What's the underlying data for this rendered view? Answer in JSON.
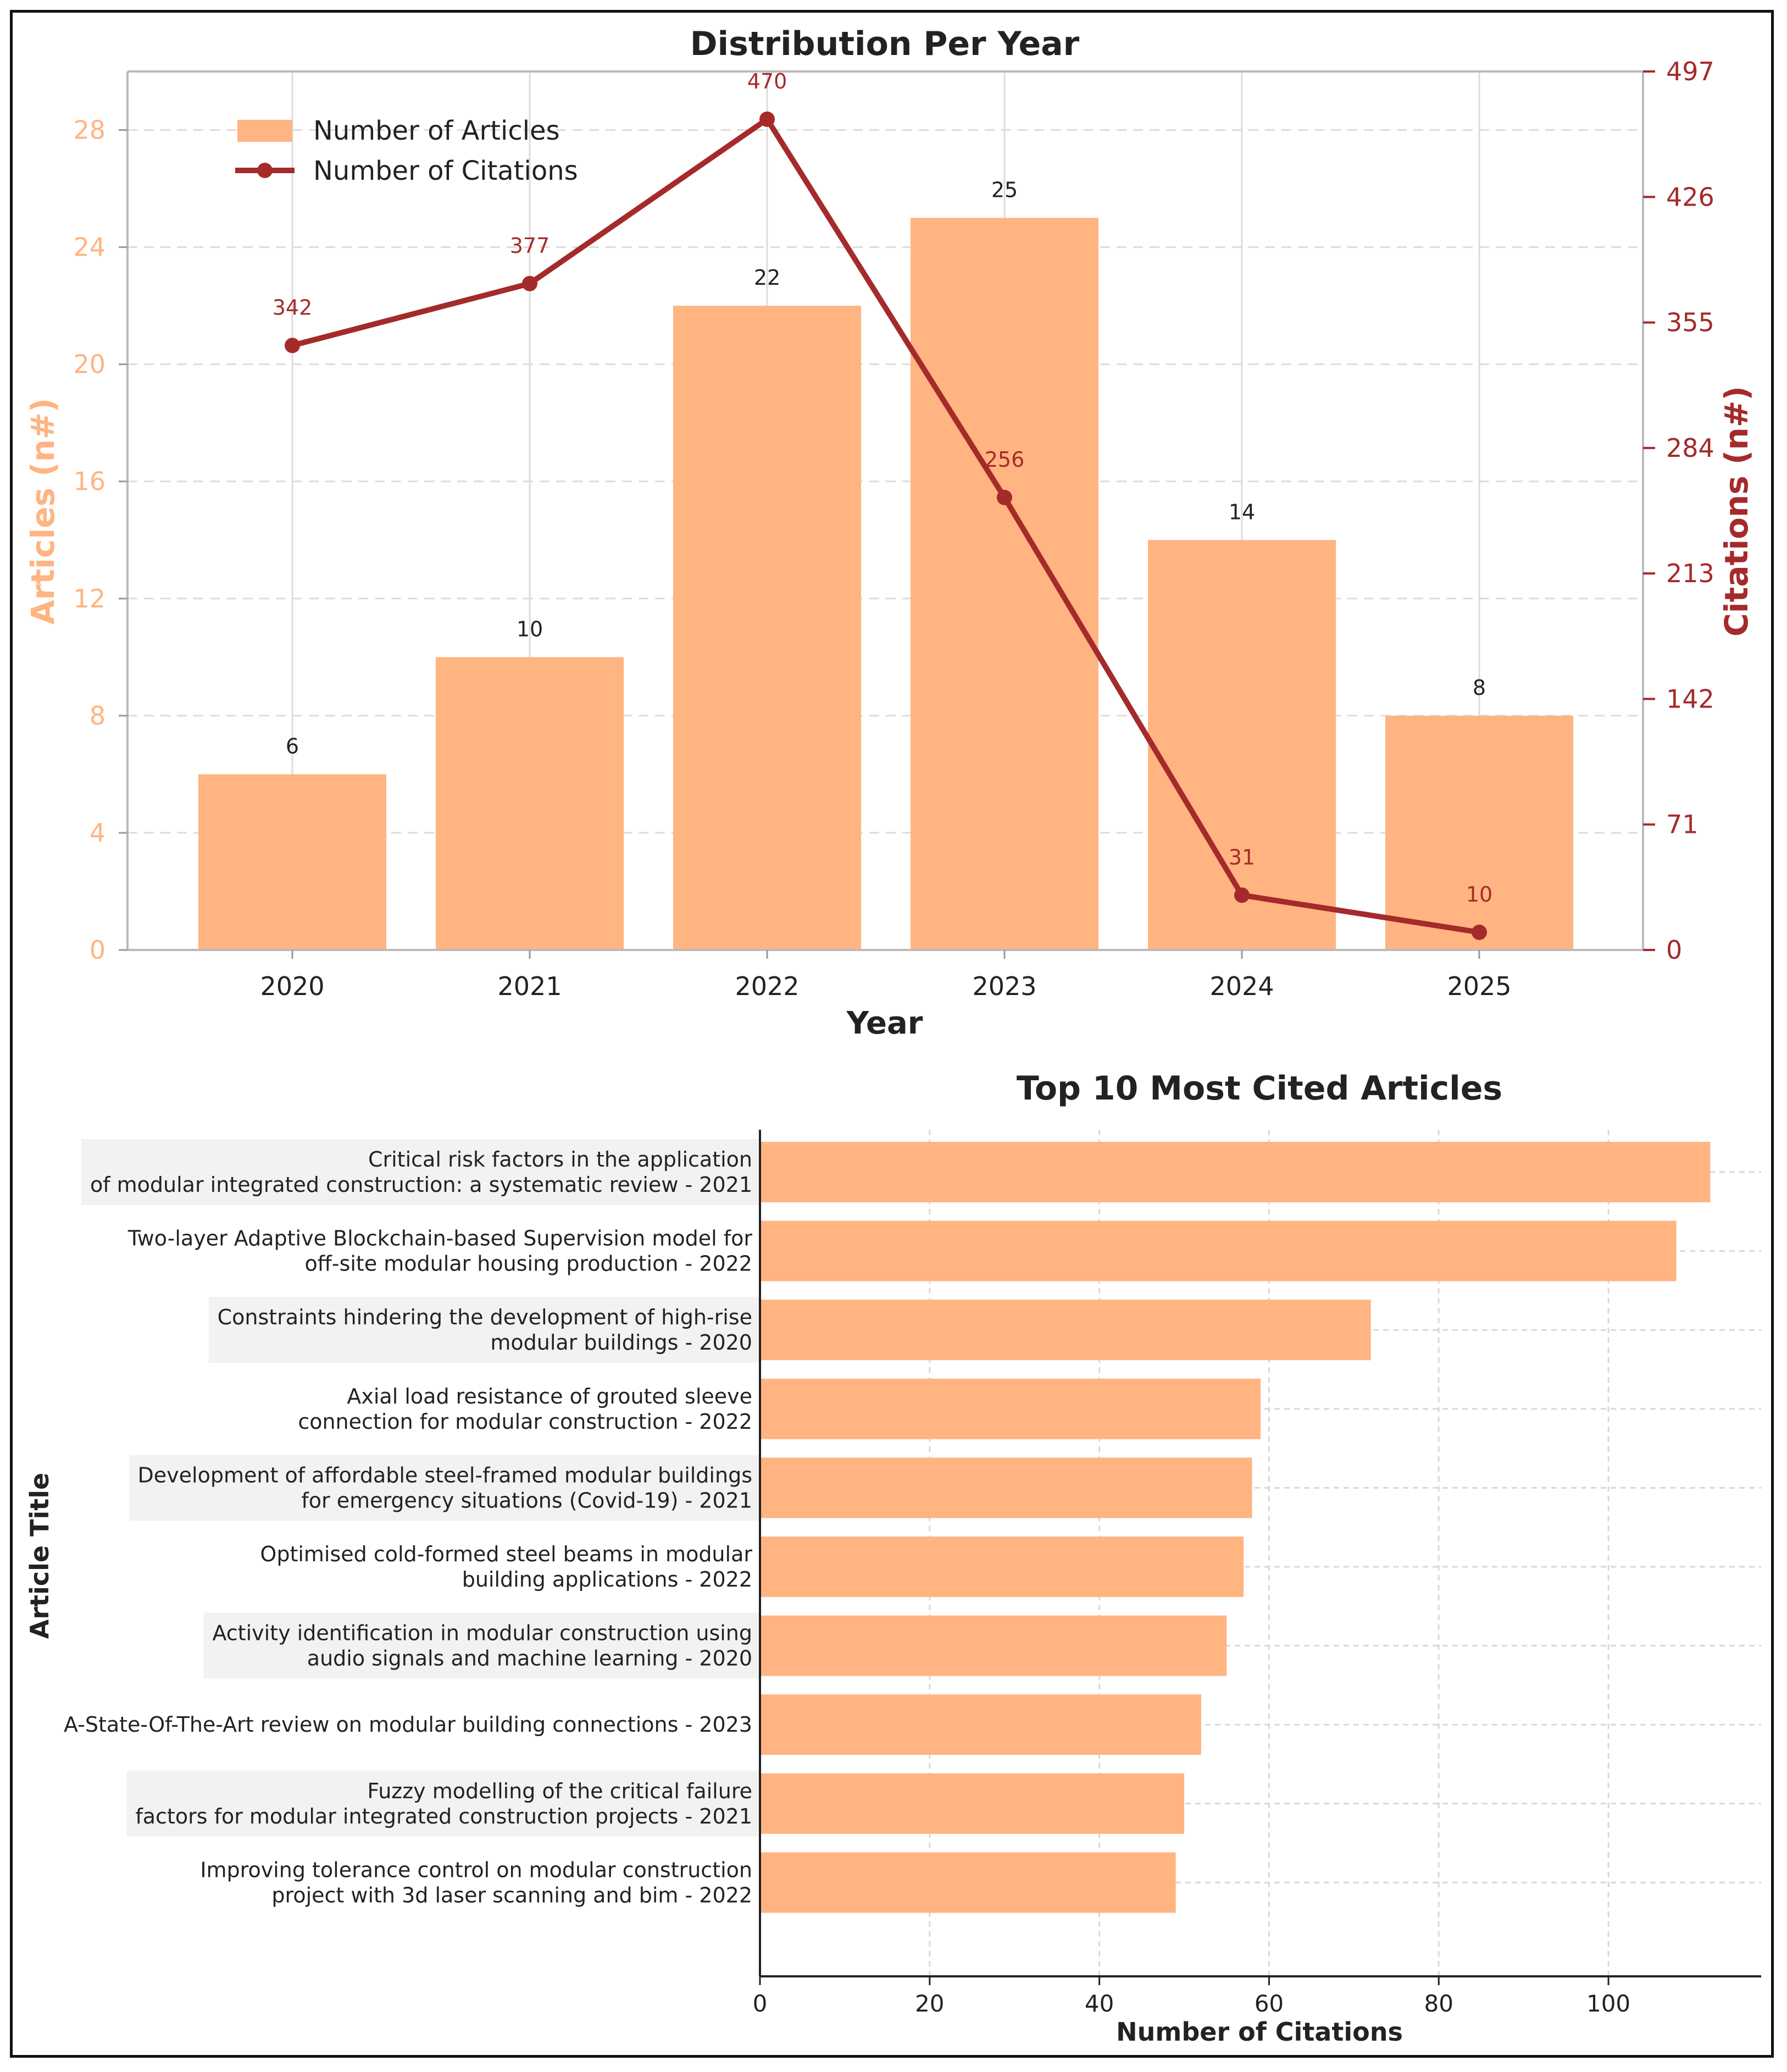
{
  "chart_data": [
    {
      "type": "bar+line",
      "title": "Distribution Per Year",
      "xlabel": "Year",
      "ylabel_left": "Articles (n#)",
      "ylabel_right": "Citations (n#)",
      "categories": [
        "2020",
        "2021",
        "2022",
        "2023",
        "2024",
        "2025"
      ],
      "series": [
        {
          "name": "Number of Articles",
          "kind": "bar",
          "axis": "left",
          "values": [
            6,
            10,
            22,
            25,
            14,
            8
          ]
        },
        {
          "name": "Number of Citations",
          "kind": "line",
          "axis": "right",
          "values": [
            342,
            377,
            470,
            256,
            31,
            10
          ]
        }
      ],
      "ylim_left": [
        0,
        30
      ],
      "yticks_left": [
        0,
        4,
        8,
        12,
        16,
        20,
        24,
        28
      ],
      "ylim_right": [
        0,
        497
      ],
      "yticks_right": [
        0,
        71,
        142,
        213,
        284,
        355,
        426,
        497
      ],
      "grid": true,
      "legend": "top-left",
      "colors": {
        "bar": "#ffb482",
        "line": "#a52a2a",
        "left_axis": "#ffb482",
        "right_axis": "#a52a2a",
        "label": "#222222"
      }
    },
    {
      "type": "barh",
      "title": "Top 10 Most Cited Articles",
      "xlabel": "Number of Citations",
      "ylabel": "Article Title",
      "categories": [
        [
          "Critical risk factors in the application",
          "of modular integrated construction: a systematic review - 2021"
        ],
        [
          "Two-layer Adaptive Blockchain-based Supervision model for",
          "off-site modular housing production - 2022"
        ],
        [
          "Constraints hindering the development of high-rise",
          "modular buildings - 2020"
        ],
        [
          "Axial load resistance of grouted sleeve",
          "connection for modular construction - 2022"
        ],
        [
          "Development of affordable steel-framed modular buildings",
          "for emergency situations (Covid-19) - 2021"
        ],
        [
          "Optimised cold-formed steel beams in modular",
          "building applications - 2022"
        ],
        [
          "Activity identification in modular construction using",
          "audio signals and machine learning - 2020"
        ],
        [
          "A-State-Of-The-Art review on modular building connections - 2023"
        ],
        [
          "Fuzzy modelling of the critical failure",
          "factors for modular integrated construction projects - 2021"
        ],
        [
          "Improving tolerance control on modular construction",
          "project with 3d laser scanning and bim - 2022"
        ]
      ],
      "values": [
        112,
        108,
        72,
        59,
        58,
        57,
        55,
        52,
        50,
        49
      ],
      "xlim": [
        0,
        118
      ],
      "xticks": [
        0,
        20,
        40,
        60,
        80,
        100
      ],
      "highlighted_rows": [
        0,
        2,
        4,
        6,
        8
      ],
      "grid": true,
      "colors": {
        "bar": "#ffb482",
        "highlight": "#f2f2f2"
      }
    }
  ]
}
